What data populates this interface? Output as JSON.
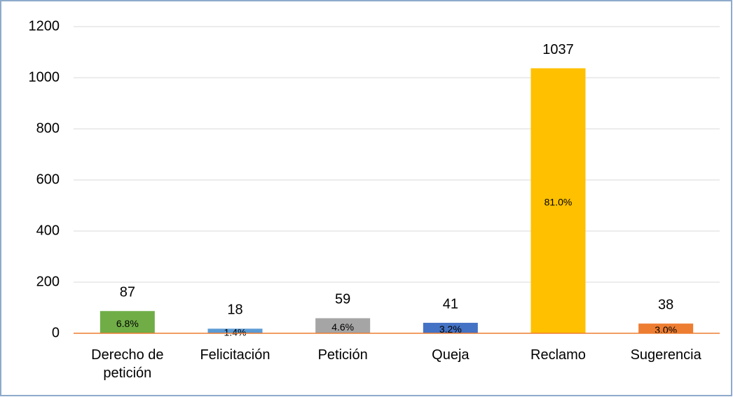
{
  "chart_data": {
    "type": "bar",
    "categories": [
      "Derecho de petición",
      "Felicitación",
      "Petición",
      "Queja",
      "Reclamo",
      "Sugerencia"
    ],
    "values": [
      87,
      18,
      59,
      41,
      1037,
      38
    ],
    "colors": [
      "#70ad47",
      "#5b9bd5",
      "#a5a5a5",
      "#4472c4",
      "#ffc000",
      "#ed7d31"
    ],
    "percentage_labels": [
      "6.8%",
      "1.4%",
      "4.6%",
      "3.2%",
      "81.0%",
      "3.0%"
    ],
    "ylim": [
      0,
      1200
    ],
    "yticks": [
      0,
      200,
      400,
      600,
      800,
      1000,
      1200
    ],
    "grid": true
  }
}
